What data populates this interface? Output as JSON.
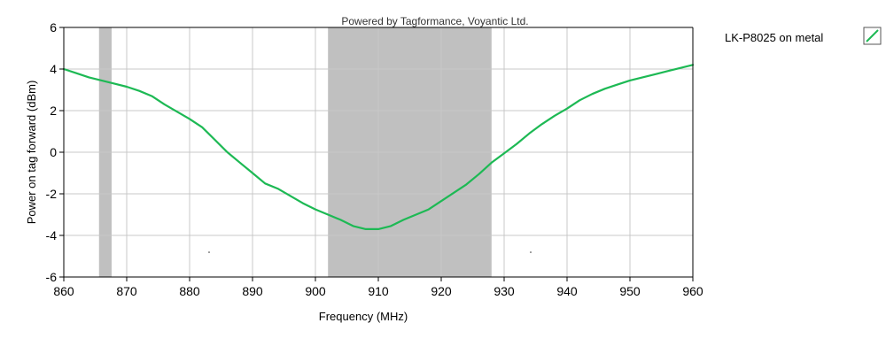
{
  "chart_data": {
    "type": "line",
    "subtitle": "Powered by Tagformance, Voyantic Ltd.",
    "xlabel": "Frequency (MHz)",
    "ylabel": "Power on tag forward (dBm)",
    "xlim": [
      860,
      960
    ],
    "ylim": [
      -6,
      6
    ],
    "x_ticks": [
      860,
      870,
      880,
      890,
      900,
      910,
      920,
      930,
      940,
      950,
      960
    ],
    "y_ticks": [
      -6,
      -4,
      -2,
      0,
      2,
      4,
      6
    ],
    "grid": true,
    "shaded_bands": [
      {
        "from": 865.6,
        "to": 867.6,
        "color": "#c0c0c0"
      },
      {
        "from": 902,
        "to": 928,
        "color": "#c0c0c0"
      }
    ],
    "legend_position": "right",
    "series": [
      {
        "name": "LK-P8025 on metal",
        "color": "#1db954",
        "x": [
          860,
          862,
          864,
          866,
          868,
          870,
          872,
          874,
          876,
          878,
          880,
          882,
          884,
          886,
          888,
          890,
          892,
          894,
          896,
          898,
          900,
          902,
          904,
          906,
          908,
          910,
          912,
          914,
          916,
          918,
          920,
          922,
          924,
          926,
          928,
          930,
          932,
          934,
          936,
          938,
          940,
          942,
          944,
          946,
          948,
          950,
          952,
          954,
          956,
          958,
          960
        ],
        "y": [
          4.0,
          3.8,
          3.6,
          3.45,
          3.3,
          3.15,
          2.95,
          2.7,
          2.3,
          1.95,
          1.6,
          1.2,
          0.6,
          0.0,
          -0.5,
          -1.0,
          -1.5,
          -1.75,
          -2.1,
          -2.45,
          -2.75,
          -3.0,
          -3.25,
          -3.55,
          -3.7,
          -3.7,
          -3.55,
          -3.25,
          -3.0,
          -2.75,
          -2.35,
          -1.95,
          -1.55,
          -1.05,
          -0.5,
          -0.05,
          0.4,
          0.9,
          1.35,
          1.75,
          2.1,
          2.5,
          2.8,
          3.05,
          3.25,
          3.45,
          3.6,
          3.75,
          3.9,
          4.05,
          4.2
        ]
      }
    ]
  }
}
